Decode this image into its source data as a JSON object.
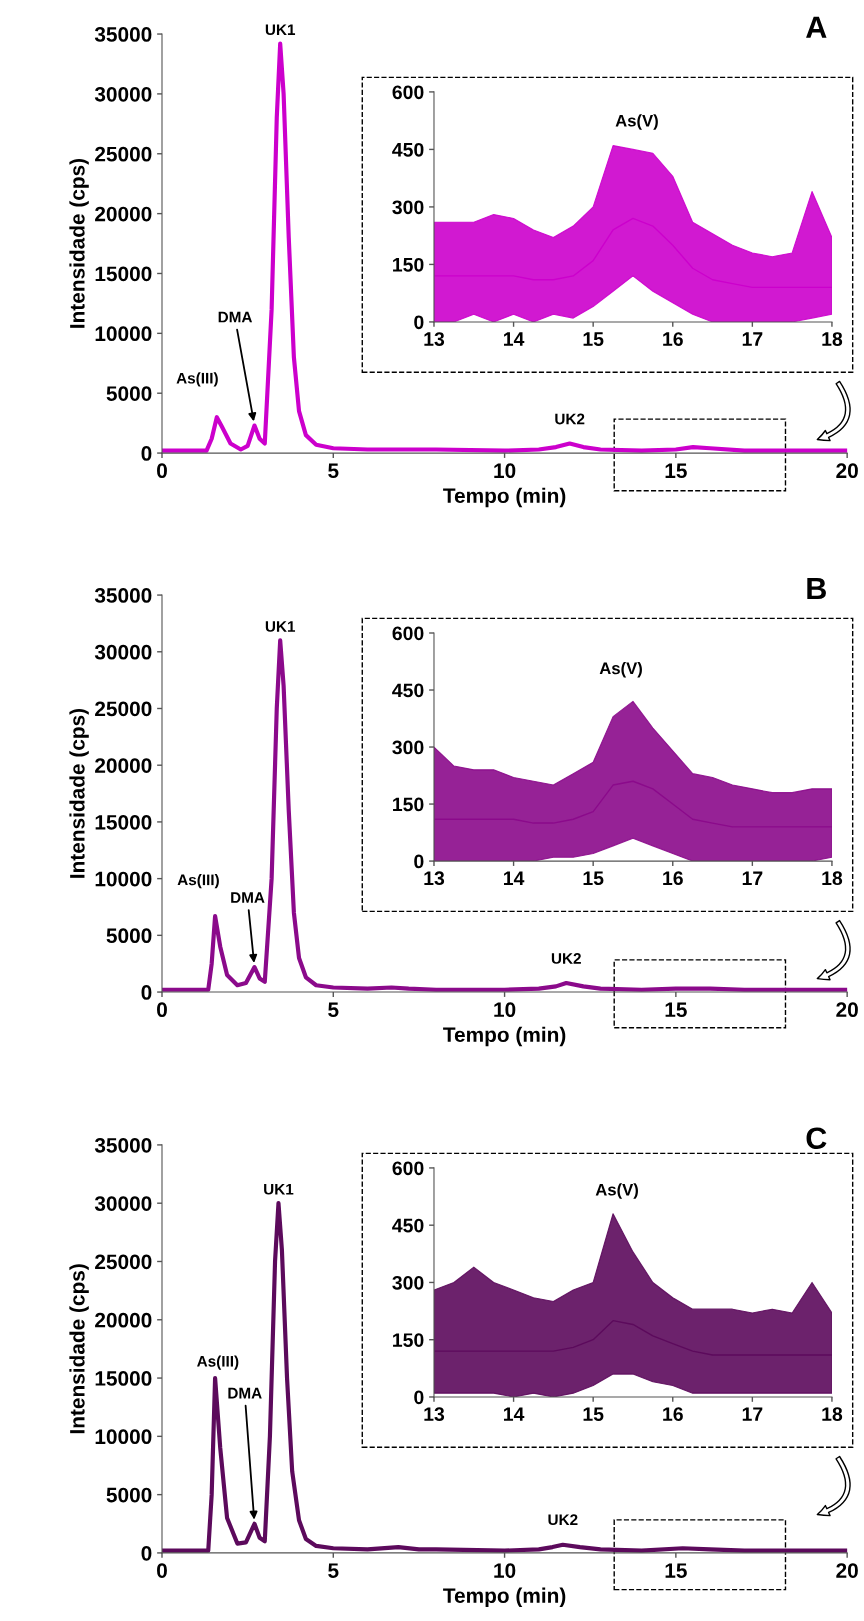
{
  "chart_data": [
    {
      "type": "line",
      "title": "A",
      "xlabel": "Tempo (min)",
      "ylabel": "Intensidade (cps)",
      "xlim": [
        0,
        20
      ],
      "ylim": [
        0,
        35000
      ],
      "xticks": [
        0,
        5,
        10,
        15,
        20
      ],
      "yticks": [
        0,
        5000,
        10000,
        15000,
        20000,
        25000,
        30000,
        35000
      ],
      "x": [
        0,
        1.3,
        1.45,
        1.6,
        1.75,
        2.0,
        2.3,
        2.5,
        2.7,
        2.85,
        3.0,
        3.2,
        3.35,
        3.45,
        3.55,
        3.7,
        3.85,
        4.0,
        4.2,
        4.5,
        5,
        6,
        8,
        10,
        11,
        11.5,
        11.9,
        12.3,
        12.8,
        14,
        15,
        15.5,
        16,
        17,
        20
      ],
      "series": [
        {
          "color": "#cc00cc",
          "values": [
            200,
            200,
            1200,
            3000,
            2200,
            800,
            300,
            600,
            2300,
            1200,
            800,
            12000,
            28000,
            34200,
            30000,
            18000,
            8000,
            3500,
            1500,
            700,
            400,
            300,
            300,
            200,
            300,
            500,
            800,
            500,
            300,
            200,
            300,
            500,
            400,
            200,
            200
          ]
        }
      ],
      "annotations": [
        {
          "text": "As(III)",
          "x": 1.6,
          "y": 3000
        },
        {
          "text": "DMA",
          "x": 2.7,
          "y": 2300
        },
        {
          "text": "UK1",
          "x": 3.45,
          "y": 34200
        },
        {
          "text": "UK2",
          "x": 11.9,
          "y": 750
        }
      ]
    },
    {
      "type": "line",
      "xlim": [
        13,
        18
      ],
      "ylim": [
        0,
        600
      ],
      "xticks": [
        13,
        14,
        15,
        16,
        17,
        18
      ],
      "yticks": [
        0,
        150,
        300,
        450,
        600
      ],
      "x": [
        13,
        13.25,
        13.5,
        13.75,
        14,
        14.25,
        14.5,
        14.75,
        15,
        15.25,
        15.5,
        15.75,
        16,
        16.25,
        16.5,
        16.75,
        17,
        17.25,
        17.5,
        17.75,
        18
      ],
      "series": [
        {
          "color": "#cc00cc",
          "values": [
            120,
            120,
            120,
            120,
            120,
            110,
            110,
            120,
            160,
            240,
            270,
            250,
            200,
            140,
            110,
            100,
            90,
            90,
            90,
            90,
            90
          ],
          "lower": [
            0,
            0,
            20,
            0,
            20,
            0,
            20,
            10,
            40,
            80,
            120,
            80,
            50,
            20,
            0,
            0,
            0,
            0,
            0,
            10,
            20
          ],
          "upper": [
            260,
            260,
            260,
            280,
            270,
            240,
            220,
            250,
            300,
            460,
            450,
            440,
            380,
            260,
            230,
            200,
            180,
            170,
            180,
            340,
            220
          ]
        }
      ],
      "annotations": [
        "As(V)"
      ]
    },
    {
      "type": "line",
      "title": "B",
      "xlabel": "Tempo (min)",
      "ylabel": "Intensidade (cps)",
      "xlim": [
        0,
        20
      ],
      "ylim": [
        0,
        35000
      ],
      "xticks": [
        0,
        5,
        10,
        15,
        20
      ],
      "yticks": [
        0,
        5000,
        10000,
        15000,
        20000,
        25000,
        30000,
        35000
      ],
      "x": [
        0,
        1.35,
        1.45,
        1.55,
        1.7,
        1.9,
        2.2,
        2.45,
        2.7,
        2.85,
        3.0,
        3.2,
        3.35,
        3.45,
        3.55,
        3.7,
        3.85,
        4.0,
        4.2,
        4.5,
        5,
        6,
        6.7,
        7.2,
        8,
        10,
        11,
        11.5,
        11.8,
        12.3,
        12.8,
        14,
        15,
        15.5,
        16,
        17,
        20
      ],
      "series": [
        {
          "color": "#8b0a8b",
          "values": [
            200,
            200,
            2500,
            6700,
            4000,
            1500,
            600,
            800,
            2200,
            1200,
            900,
            10000,
            25000,
            31000,
            27000,
            16000,
            7000,
            3000,
            1300,
            600,
            400,
            300,
            400,
            300,
            200,
            200,
            300,
            500,
            800,
            500,
            300,
            200,
            300,
            300,
            300,
            200,
            200
          ]
        }
      ],
      "annotations": [
        {
          "text": "As(III)",
          "x": 1.55,
          "y": 6700
        },
        {
          "text": "DMA",
          "x": 2.7,
          "y": 2200
        },
        {
          "text": "UK1",
          "x": 3.45,
          "y": 31000
        },
        {
          "text": "UK2",
          "x": 11.8,
          "y": 750
        }
      ]
    },
    {
      "type": "line",
      "xlim": [
        13,
        18
      ],
      "ylim": [
        0,
        600
      ],
      "xticks": [
        13,
        14,
        15,
        16,
        17,
        18
      ],
      "yticks": [
        0,
        150,
        300,
        450,
        600
      ],
      "x": [
        13,
        13.25,
        13.5,
        13.75,
        14,
        14.25,
        14.5,
        14.75,
        15,
        15.25,
        15.5,
        15.75,
        16,
        16.25,
        16.5,
        16.75,
        17,
        17.25,
        17.5,
        17.75,
        18
      ],
      "series": [
        {
          "color": "#8b0a8b",
          "values": [
            110,
            110,
            110,
            110,
            110,
            100,
            100,
            110,
            130,
            200,
            210,
            190,
            150,
            110,
            100,
            90,
            90,
            90,
            90,
            90,
            90
          ],
          "lower": [
            0,
            0,
            0,
            0,
            0,
            0,
            10,
            10,
            20,
            40,
            60,
            40,
            20,
            0,
            0,
            0,
            0,
            0,
            0,
            0,
            10
          ],
          "upper": [
            300,
            250,
            240,
            240,
            220,
            210,
            200,
            230,
            260,
            380,
            420,
            350,
            290,
            230,
            220,
            200,
            190,
            180,
            180,
            190,
            190
          ]
        }
      ],
      "annotations": [
        "As(V)"
      ]
    },
    {
      "type": "line",
      "title": "C",
      "xlabel": "Tempo (min)",
      "ylabel": "Intensidade (cps)",
      "xlim": [
        0,
        20
      ],
      "ylim": [
        0,
        35000
      ],
      "xticks": [
        0,
        5,
        10,
        15,
        20
      ],
      "yticks": [
        0,
        5000,
        10000,
        15000,
        20000,
        25000,
        30000,
        35000
      ],
      "x": [
        0,
        1.35,
        1.45,
        1.55,
        1.7,
        1.9,
        2.2,
        2.45,
        2.7,
        2.85,
        3.0,
        3.15,
        3.3,
        3.4,
        3.5,
        3.65,
        3.8,
        4.0,
        4.2,
        4.5,
        5,
        6,
        6.9,
        7.5,
        8,
        10,
        11,
        11.4,
        11.7,
        12.2,
        12.8,
        14,
        15.2,
        16,
        17,
        20
      ],
      "series": [
        {
          "color": "#5c0a5c",
          "values": [
            200,
            200,
            5000,
            15000,
            9000,
            3000,
            800,
            900,
            2500,
            1300,
            1000,
            10000,
            25000,
            30000,
            26000,
            15000,
            7000,
            2800,
            1200,
            600,
            400,
            300,
            500,
            300,
            300,
            200,
            300,
            500,
            700,
            500,
            300,
            200,
            400,
            300,
            200,
            200
          ]
        }
      ],
      "annotations": [
        {
          "text": "As(III)",
          "x": 1.55,
          "y": 15000
        },
        {
          "text": "DMA",
          "x": 2.7,
          "y": 2500
        },
        {
          "text": "UK1",
          "x": 3.4,
          "y": 30000
        },
        {
          "text": "UK2",
          "x": 11.7,
          "y": 700
        }
      ]
    },
    {
      "type": "line",
      "xlim": [
        13,
        18
      ],
      "ylim": [
        0,
        600
      ],
      "xticks": [
        13,
        14,
        15,
        16,
        17,
        18
      ],
      "yticks": [
        0,
        150,
        300,
        450,
        600
      ],
      "x": [
        13,
        13.25,
        13.5,
        13.75,
        14,
        14.25,
        14.5,
        14.75,
        15,
        15.25,
        15.5,
        15.75,
        16,
        16.25,
        16.5,
        16.75,
        17,
        17.25,
        17.5,
        17.75,
        18
      ],
      "series": [
        {
          "color": "#5c0a5c",
          "values": [
            120,
            120,
            120,
            120,
            120,
            120,
            120,
            130,
            150,
            200,
            190,
            160,
            140,
            120,
            110,
            110,
            110,
            110,
            110,
            110,
            110
          ],
          "lower": [
            10,
            10,
            10,
            10,
            0,
            10,
            0,
            10,
            30,
            60,
            60,
            40,
            30,
            10,
            10,
            10,
            10,
            10,
            10,
            10,
            10
          ],
          "upper": [
            280,
            300,
            340,
            300,
            280,
            260,
            250,
            280,
            300,
            480,
            380,
            300,
            260,
            230,
            230,
            230,
            220,
            230,
            220,
            300,
            220
          ]
        }
      ],
      "annotations": [
        "As(V)"
      ]
    }
  ]
}
